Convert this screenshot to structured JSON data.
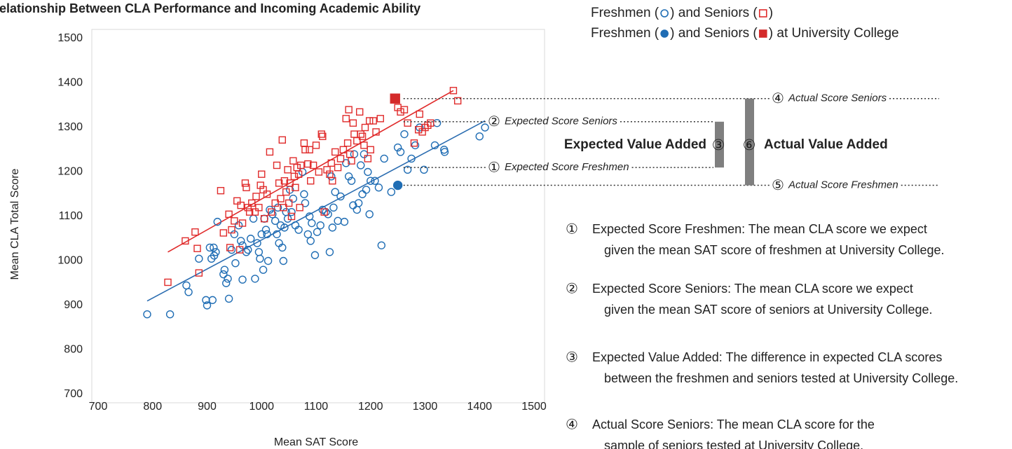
{
  "chart_data": {
    "type": "scatter",
    "title": "Relationship Between CLA Performance and Incoming Academic Ability",
    "x_label": "Mean SAT Score",
    "y_label": "Mean CLA Total Score",
    "xlim": [
      700,
      1500
    ],
    "xticks": [
      700,
      800,
      900,
      1000,
      1100,
      1200,
      1300,
      1400,
      1500
    ],
    "ylim": [
      700,
      1500
    ],
    "yticks": [
      700,
      800,
      900,
      1000,
      1100,
      1200,
      1300,
      1400,
      1500
    ],
    "legend": [
      {
        "parts": [
          "Freshmen (",
          ") and Seniors (",
          ")"
        ]
      },
      {
        "parts": [
          "Freshmen (",
          ") and Seniors (",
          ") at University College"
        ]
      }
    ],
    "series": [
      {
        "name": "Freshmen",
        "color": "#1f6db4",
        "marker": "circle",
        "filled": false,
        "x": [
          790,
          832,
          862,
          866,
          885,
          898,
          900,
          905,
          908,
          910,
          912,
          913,
          916,
          919,
          930,
          932,
          935,
          938,
          940,
          945,
          950,
          952,
          958,
          962,
          965,
          965,
          972,
          975,
          980,
          985,
          988,
          992,
          995,
          997,
          1000,
          1003,
          1005,
          1008,
          1010,
          1012,
          1015,
          1020,
          1025,
          1028,
          1030,
          1032,
          1035,
          1038,
          1040,
          1042,
          1045,
          1048,
          1052,
          1055,
          1058,
          1062,
          1068,
          1075,
          1078,
          1080,
          1085,
          1088,
          1090,
          1092,
          1098,
          1102,
          1108,
          1112,
          1118,
          1122,
          1125,
          1128,
          1130,
          1132,
          1135,
          1140,
          1145,
          1152,
          1155,
          1160,
          1165,
          1168,
          1170,
          1175,
          1178,
          1182,
          1185,
          1188,
          1192,
          1195,
          1198,
          1200,
          1208,
          1215,
          1220,
          1225,
          1238,
          1250,
          1255,
          1262,
          1268,
          1275,
          1282,
          1290,
          1298,
          1318,
          1322,
          1335,
          1336,
          1400,
          1410
        ],
        "values": [
          880,
          880,
          945,
          930,
          1005,
          912,
          900,
          1030,
          1005,
          912,
          1030,
          1012,
          1020,
          1088,
          970,
          980,
          950,
          960,
          915,
          1025,
          1060,
          995,
          1080,
          1045,
          1035,
          958,
          1020,
          1025,
          1050,
          1095,
          960,
          1040,
          1020,
          1005,
          1060,
          980,
          1095,
          1070,
          1060,
          1000,
          1115,
          1105,
          1090,
          1060,
          1120,
          1040,
          1080,
          1030,
          1000,
          1075,
          1110,
          1095,
          1160,
          1110,
          1140,
          1080,
          1070,
          1200,
          1150,
          1130,
          1060,
          1100,
          1045,
          1085,
          1013,
          1065,
          1080,
          1115,
          1110,
          1105,
          1020,
          1190,
          1075,
          1120,
          1155,
          1090,
          1145,
          1088,
          1220,
          1190,
          1180,
          1125,
          1240,
          1115,
          1130,
          1215,
          1150,
          1240,
          1160,
          1200,
          1105,
          1180,
          1180,
          1165,
          1035,
          1230,
          1155,
          1255,
          1245,
          1285,
          1205,
          1230,
          1260,
          1300,
          1205,
          1260,
          1310,
          1250,
          1245,
          1280,
          1300
        ]
      },
      {
        "name": "Seniors",
        "color": "#e02b2b",
        "marker": "square",
        "filled": false,
        "x": [
          828,
          860,
          878,
          882,
          885,
          925,
          930,
          940,
          942,
          945,
          950,
          955,
          960,
          962,
          965,
          970,
          972,
          975,
          978,
          982,
          988,
          990,
          995,
          998,
          1000,
          1003,
          1005,
          1010,
          1015,
          1018,
          1025,
          1028,
          1032,
          1035,
          1038,
          1040,
          1042,
          1045,
          1048,
          1050,
          1052,
          1055,
          1058,
          1060,
          1062,
          1065,
          1068,
          1070,
          1072,
          1078,
          1080,
          1085,
          1088,
          1090,
          1095,
          1100,
          1105,
          1110,
          1112,
          1115,
          1120,
          1125,
          1128,
          1130,
          1135,
          1140,
          1145,
          1150,
          1155,
          1158,
          1160,
          1162,
          1165,
          1168,
          1170,
          1175,
          1180,
          1182,
          1185,
          1188,
          1190,
          1195,
          1198,
          1200,
          1205,
          1210,
          1218,
          1250,
          1255,
          1262,
          1268,
          1280,
          1288,
          1290,
          1295,
          1300,
          1305,
          1310,
          1352,
          1360
        ],
        "values": [
          952,
          1045,
          1065,
          1028,
          973,
          1158,
          1063,
          1105,
          1030,
          1070,
          1090,
          1135,
          1025,
          1125,
          1085,
          1175,
          1165,
          1120,
          1110,
          1130,
          1110,
          1145,
          1120,
          1170,
          1195,
          1160,
          1095,
          1150,
          1245,
          1110,
          1130,
          1215,
          1175,
          1140,
          1272,
          1120,
          1180,
          1155,
          1205,
          1130,
          1175,
          1100,
          1225,
          1190,
          1165,
          1210,
          1195,
          1120,
          1215,
          1265,
          1250,
          1218,
          1250,
          1180,
          1215,
          1260,
          1200,
          1285,
          1280,
          1110,
          1205,
          1195,
          1220,
          1180,
          1245,
          1210,
          1230,
          1250,
          1320,
          1265,
          1340,
          1240,
          1225,
          1310,
          1285,
          1270,
          1335,
          1285,
          1280,
          1260,
          1300,
          1230,
          1315,
          1250,
          1315,
          1290,
          1320,
          1345,
          1335,
          1340,
          1310,
          1265,
          1295,
          1330,
          1290,
          1300,
          1305,
          1310,
          1383,
          1360
        ]
      },
      {
        "color": "#1f6db4",
        "marker": "circle",
        "filled": true,
        "x": [
          1250
        ],
        "values": [
          1170
        ]
      },
      {
        "color": "#d42a2a",
        "marker": "square",
        "filled": true,
        "x": [
          1245
        ],
        "values": [
          1365
        ]
      }
    ],
    "trendlines": [
      {
        "color": "#2a6cb0",
        "x": [
          790,
          1410
        ],
        "values": [
          910,
          1315
        ]
      },
      {
        "color": "#e02b2b",
        "x": [
          828,
          1352
        ],
        "values": [
          1020,
          1383
        ]
      }
    ],
    "annotations": [
      {
        "marker": "①",
        "label": "Expected Score Freshmen",
        "value": 1210
      },
      {
        "marker": "②",
        "label": "Expected Score Seniors",
        "value": 1313
      },
      {
        "marker": "④",
        "label": "Actual Score Seniors",
        "value": 1365
      },
      {
        "marker": "⑤",
        "label": "Actual Score Freshmen",
        "value": 1170
      }
    ],
    "value_added": [
      {
        "marker": "③",
        "label": "Expected Value Added"
      },
      {
        "marker": "⑥",
        "label": "Actual Value Added"
      }
    ],
    "notes": [
      {
        "marker": "①",
        "lines": [
          "Expected Score Freshmen: The mean CLA score we expect",
          "given the mean SAT score of freshmen at University College."
        ]
      },
      {
        "marker": "②",
        "lines": [
          "Expected Score Seniors: The mean CLA score we expect",
          "given the mean SAT score of seniors at University College."
        ]
      },
      {
        "marker": "③",
        "lines": [
          "Expected Value Added: The difference in expected CLA scores",
          "between the freshmen and seniors tested at University College."
        ]
      },
      {
        "marker": "④",
        "lines": [
          "Actual Score Seniors: The mean CLA score for the",
          "sample of seniors tested at University College."
        ]
      }
    ]
  }
}
